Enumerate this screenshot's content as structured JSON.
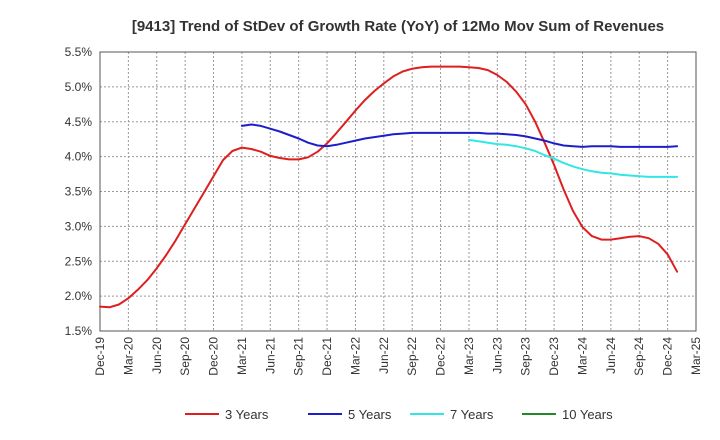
{
  "chart_data": {
    "type": "line",
    "title": "[9413]  Trend of StDev of Growth Rate (YoY) of 12Mo Mov Sum of Revenues",
    "xlabel": "",
    "ylabel": "",
    "x_start": "Dec-19",
    "x_end": "Mar-25",
    "x_tick_labels": [
      "Dec-19",
      "Mar-20",
      "Jun-20",
      "Sep-20",
      "Dec-20",
      "Mar-21",
      "Jun-21",
      "Sep-21",
      "Dec-21",
      "Mar-22",
      "Jun-22",
      "Sep-22",
      "Dec-22",
      "Mar-23",
      "Jun-23",
      "Sep-23",
      "Dec-23",
      "Mar-24",
      "Jun-24",
      "Sep-24",
      "Dec-24",
      "Mar-25"
    ],
    "ylim": [
      1.5,
      5.5
    ],
    "y_ticks": [
      1.5,
      2.0,
      2.5,
      3.0,
      3.5,
      4.0,
      4.5,
      5.0,
      5.5
    ],
    "y_tick_labels": [
      "1.5%",
      "2.0%",
      "2.5%",
      "3.0%",
      "3.5%",
      "4.0%",
      "4.5%",
      "5.0%",
      "5.5%"
    ],
    "grid": true,
    "legend_position": "bottom",
    "series": [
      {
        "name": "3 Years",
        "color": "#dd1f1f",
        "start_month_index": 0,
        "values": [
          1.85,
          1.84,
          1.88,
          1.97,
          2.09,
          2.23,
          2.4,
          2.59,
          2.8,
          3.03,
          3.26,
          3.49,
          3.72,
          3.95,
          4.08,
          4.13,
          4.11,
          4.07,
          4.01,
          3.98,
          3.96,
          3.96,
          3.99,
          4.07,
          4.19,
          4.34,
          4.5,
          4.66,
          4.81,
          4.94,
          5.05,
          5.15,
          5.22,
          5.26,
          5.28,
          5.29,
          5.29,
          5.29,
          5.29,
          5.28,
          5.27,
          5.24,
          5.17,
          5.07,
          4.93,
          4.75,
          4.5,
          4.2,
          3.88,
          3.53,
          3.22,
          2.99,
          2.86,
          2.81,
          2.81,
          2.83,
          2.85,
          2.86,
          2.83,
          2.75,
          2.6,
          2.35
        ]
      },
      {
        "name": "5 Years",
        "color": "#1c1fc9",
        "start_month_index": 15,
        "values": [
          4.44,
          4.46,
          4.44,
          4.4,
          4.36,
          4.31,
          4.26,
          4.2,
          4.16,
          4.15,
          4.17,
          4.2,
          4.23,
          4.26,
          4.28,
          4.3,
          4.32,
          4.33,
          4.34,
          4.34,
          4.34,
          4.34,
          4.34,
          4.34,
          4.34,
          4.34,
          4.33,
          4.33,
          4.32,
          4.31,
          4.29,
          4.26,
          4.23,
          4.19,
          4.16,
          4.15,
          4.14,
          4.15,
          4.15,
          4.15,
          4.14,
          4.14,
          4.14,
          4.14,
          4.14,
          4.14,
          4.15
        ]
      },
      {
        "name": "7 Years",
        "color": "#33e6e6",
        "start_month_index": 39,
        "values": [
          4.24,
          4.22,
          4.2,
          4.18,
          4.17,
          4.15,
          4.12,
          4.08,
          4.02,
          3.97,
          3.91,
          3.86,
          3.82,
          3.79,
          3.77,
          3.76,
          3.74,
          3.73,
          3.72,
          3.71,
          3.71,
          3.71,
          3.71
        ]
      },
      {
        "name": "10 Years",
        "color": "#22882a",
        "start_month_index": 0,
        "values": []
      }
    ]
  }
}
